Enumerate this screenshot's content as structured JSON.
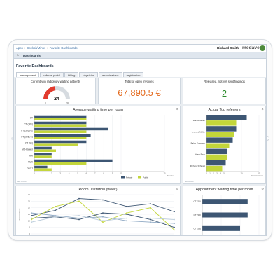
{
  "breadcrumb": [
    "Apps",
    "Cockpit/Mintel",
    "Favorite Dashboards"
  ],
  "user": {
    "name": "Richard Smith"
  },
  "brand": {
    "name": "medave",
    "color": "#4e8a3a"
  },
  "nav": {
    "title": "Dashboards",
    "icon": "home-icon"
  },
  "page": {
    "title": "Favorite Dashboards"
  },
  "tabs": [
    {
      "label": "management",
      "active": true
    },
    {
      "label": "referral portal",
      "active": false
    },
    {
      "label": "billing",
      "active": false
    },
    {
      "label": "physician",
      "active": false
    },
    {
      "label": "examinations",
      "active": false
    },
    {
      "label": "registration",
      "active": false
    }
  ],
  "kpis": {
    "patients": {
      "title": "Currently in radiology waiting patients",
      "value": "24",
      "gauge_min": "0",
      "gauge_max": "50"
    },
    "invoices": {
      "title": "Total of open invoices",
      "value": "67,890.5 €"
    },
    "findings": {
      "title": "Released, not yet sent findings",
      "value": "2"
    }
  },
  "colors": {
    "private": "#3d5673",
    "public": "#c3d63a",
    "grid": "#e4e8ec",
    "orange": "#e36a1e",
    "green": "#2c8a2c"
  },
  "panel_foot": "last refresh",
  "charts": {
    "waiting_time": {
      "title": "Average waiting time per room",
      "x_unit": "Minutes",
      "legend": [
        "Private",
        "Public"
      ]
    },
    "top_referrers": {
      "title": "Actual Top referrers",
      "x_unit": "Examinations"
    },
    "room_util": {
      "title": "Room utilization (week)",
      "y_label": "Examinations"
    },
    "appt_wait": {
      "title": "Appointment waiting time per room"
    }
  },
  "chart_data": [
    {
      "type": "bar",
      "title": "Average waiting time per room",
      "xlabel": "Minutes",
      "categories": [
        "CT",
        "CT (301)",
        "CT (306) 02",
        "CT (306) 01",
        "CT (S1)",
        "MO-Kiewer",
        "MR",
        "NUK",
        "Gen 1"
      ],
      "series": [
        {
          "name": "Private",
          "values": [
            6,
            6,
            8.5,
            6.5,
            6,
            2,
            2,
            9,
            1.5
          ]
        },
        {
          "name": "Public",
          "values": [
            6,
            6,
            6,
            6,
            5,
            2.5,
            2,
            6,
            2
          ]
        }
      ],
      "xlim": [
        0,
        15
      ],
      "xticks": [
        0,
        1,
        2,
        3,
        4,
        5,
        6,
        7,
        8,
        9,
        10,
        15
      ]
    },
    {
      "type": "bar",
      "title": "Actual Top referrers",
      "xlabel": "Examinations",
      "categories": [
        "Harald Müller",
        "Leonard Müller",
        "Ralph Egessem",
        "Anna Beck",
        "Richard Schmidt"
      ],
      "series": [
        {
          "name": "Private",
          "values": [
            11.5,
            8.5,
            7.5,
            6,
            5.5
          ]
        },
        {
          "name": "Public",
          "values": [
            8.5,
            8,
            6.5,
            6,
            4.5
          ]
        }
      ],
      "xlim": [
        0,
        15
      ],
      "xticks": [
        0,
        1,
        2,
        3,
        4,
        5,
        10,
        15
      ]
    },
    {
      "type": "line",
      "title": "Room utilization (week)",
      "ylabel": "Examinations",
      "ylim": [
        0,
        30
      ],
      "yticks": [
        0,
        5,
        10,
        15,
        20,
        25,
        30
      ],
      "x": [
        1,
        2,
        3,
        4,
        5,
        6,
        7
      ],
      "series": [
        {
          "values": [
            14,
            18,
            27,
            26,
            21,
            23,
            17
          ]
        },
        {
          "values": [
            11,
            21,
            25,
            9,
            16,
            20,
            3
          ]
        },
        {
          "values": [
            12,
            13,
            11,
            16,
            15,
            11,
            5
          ]
        },
        {
          "values": [
            16,
            14,
            12,
            13,
            10,
            9,
            8
          ]
        },
        {
          "values": [
            9,
            13,
            14,
            10,
            12,
            12,
            11
          ]
        }
      ]
    },
    {
      "type": "bar",
      "title": "Appointment waiting time per room",
      "categories": [
        "CT (S1)",
        "CT (S2)",
        "CT (S3)"
      ],
      "series": [
        {
          "name": "Private",
          "values": [
            12,
            12,
            10
          ]
        },
        {
          "name": "Public",
          "values": [
            0,
            0,
            0
          ]
        }
      ],
      "xlim": [
        0,
        15
      ]
    }
  ]
}
